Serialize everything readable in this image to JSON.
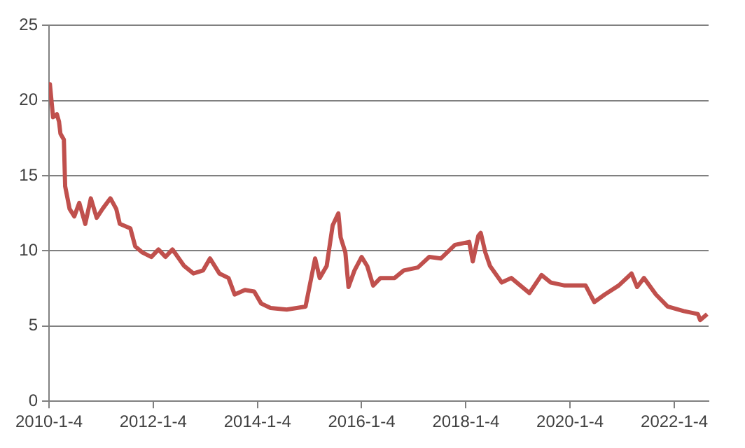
{
  "chart_data": {
    "type": "line",
    "x": [
      "2010-01-04",
      "2010-01-10",
      "2010-02-01",
      "2010-02-28",
      "2010-03-15",
      "2010-03-25",
      "2010-04-18",
      "2010-04-27",
      "2010-05-28",
      "2010-06-30",
      "2010-08-04",
      "2010-09-15",
      "2010-10-24",
      "2010-12-04",
      "2011-01-14",
      "2011-03-10",
      "2011-04-20",
      "2011-05-15",
      "2011-07-28",
      "2011-08-31",
      "2011-10-20",
      "2011-12-22",
      "2012-02-10",
      "2012-03-30",
      "2012-05-18",
      "2012-08-08",
      "2012-10-12",
      "2012-12-18",
      "2013-02-05",
      "2013-04-12",
      "2013-06-15",
      "2013-07-28",
      "2013-10-08",
      "2013-12-12",
      "2014-01-30",
      "2014-04-06",
      "2014-07-28",
      "2014-12-07",
      "2015-02-12",
      "2015-03-16",
      "2015-05-04",
      "2015-06-15",
      "2015-07-25",
      "2015-08-10",
      "2015-09-12",
      "2015-10-04",
      "2015-11-15",
      "2016-01-04",
      "2016-02-12",
      "2016-03-25",
      "2016-05-15",
      "2016-08-22",
      "2016-10-25",
      "2017-02-01",
      "2017-04-22",
      "2017-07-13",
      "2017-10-19",
      "2018-01-27",
      "2018-02-21",
      "2018-04-01",
      "2018-04-18",
      "2018-05-20",
      "2018-06-22",
      "2018-09-12",
      "2018-11-18",
      "2019-03-25",
      "2019-06-18",
      "2019-08-22",
      "2019-11-28",
      "2020-04-22",
      "2020-06-22",
      "2020-09-03",
      "2020-12-10",
      "2021-03-10",
      "2021-04-18",
      "2021-06-05",
      "2021-08-28",
      "2021-11-18",
      "2022-03-10",
      "2022-06-18",
      "2022-07-04",
      "2022-08-22"
    ],
    "series": [
      {
        "color": "#c0504d",
        "values": [
          20.5,
          21.1,
          18.9,
          19.1,
          18.6,
          17.8,
          17.4,
          14.3,
          12.8,
          12.3,
          13.2,
          11.8,
          13.5,
          12.2,
          12.8,
          13.5,
          12.8,
          11.8,
          11.5,
          10.3,
          9.9,
          9.6,
          10.1,
          9.6,
          10.1,
          9.0,
          8.5,
          8.7,
          9.5,
          8.5,
          8.2,
          7.1,
          7.4,
          7.3,
          6.5,
          6.2,
          6.1,
          6.3,
          9.5,
          8.2,
          9.0,
          11.7,
          12.5,
          10.9,
          9.9,
          7.6,
          8.7,
          9.6,
          9.0,
          7.7,
          8.2,
          8.2,
          8.7,
          8.9,
          9.6,
          9.5,
          10.4,
          10.6,
          9.3,
          11.0,
          11.2,
          9.9,
          9.0,
          7.9,
          8.2,
          7.2,
          8.4,
          7.9,
          7.7,
          7.7,
          6.6,
          7.1,
          7.7,
          8.5,
          7.6,
          8.2,
          7.1,
          6.3,
          6.0,
          5.8,
          5.4,
          5.8
        ]
      }
    ],
    "xlim": [
      "2010-01-04",
      "2022-09-01"
    ],
    "xticks": [
      {
        "value": "2010-01-04",
        "label": "2010-1-4"
      },
      {
        "value": "2012-01-04",
        "label": "2012-1-4"
      },
      {
        "value": "2014-01-04",
        "label": "2014-1-4"
      },
      {
        "value": "2016-01-04",
        "label": "2016-1-4"
      },
      {
        "value": "2018-01-04",
        "label": "2018-1-4"
      },
      {
        "value": "2020-01-04",
        "label": "2020-1-4"
      },
      {
        "value": "2022-01-04",
        "label": "2022-1-4"
      }
    ],
    "ylim": [
      0,
      25
    ],
    "yticks": [
      0,
      5,
      10,
      15,
      20,
      25
    ],
    "grid": "y",
    "legend": false,
    "marker": "none",
    "line_style": "solid"
  }
}
